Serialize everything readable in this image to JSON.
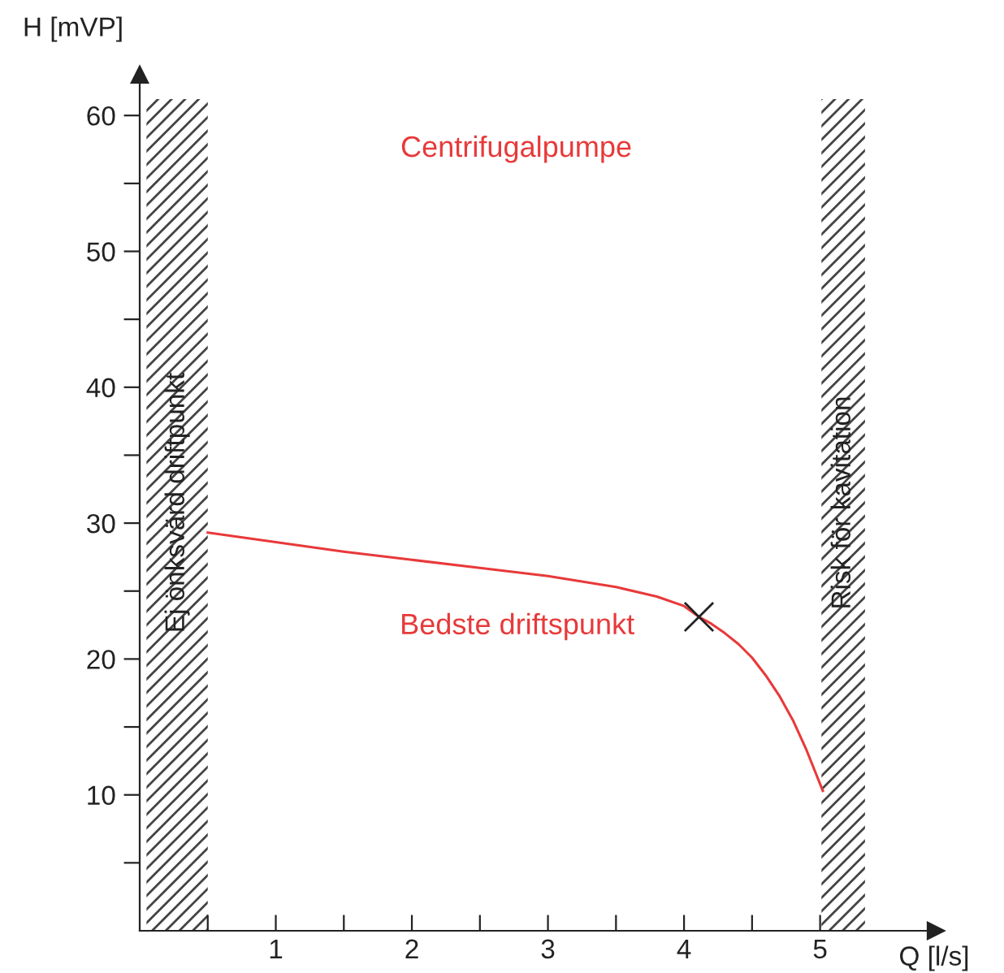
{
  "chart_data": {
    "type": "line",
    "xlabel": "Q [l/s]",
    "ylabel": "H [mVP]",
    "series": [
      {
        "color": "#e8393a",
        "x": [
          0.5,
          1.0,
          1.5,
          2.0,
          2.5,
          3.0,
          3.5,
          3.8,
          4.0,
          4.11,
          4.2,
          4.3,
          4.4,
          4.5,
          4.6,
          4.7,
          4.8,
          4.9,
          5.02
        ],
        "values": [
          29.3,
          28.6,
          27.9,
          27.3,
          26.7,
          26.1,
          25.3,
          24.6,
          23.9,
          23.1,
          22.6,
          21.9,
          21.1,
          20.1,
          18.8,
          17.3,
          15.5,
          13.3,
          10.3
        ]
      },
      {
        "type": "scatter",
        "color": "#222222",
        "marker": "cross",
        "x": [
          4.11
        ],
        "values": [
          23.1
        ]
      }
    ],
    "xlim": [
      0,
      5.85
    ],
    "ylim": [
      0,
      63
    ],
    "xticks": [
      {
        "value": 0.5,
        "label": null
      },
      1,
      {
        "value": 1.5,
        "label": null
      },
      2,
      {
        "value": 2.5,
        "label": null
      },
      3,
      {
        "value": 3.5,
        "label": null
      },
      4,
      {
        "value": 4.5,
        "label": null
      },
      5
    ],
    "yticks": [
      {
        "value": 5,
        "label": null
      },
      10,
      {
        "value": 15,
        "label": null
      },
      20,
      {
        "value": 25,
        "label": null
      },
      30,
      {
        "value": 35,
        "label": null
      },
      40,
      {
        "value": 45,
        "label": null
      },
      50,
      {
        "value": 55,
        "label": null
      },
      60
    ],
    "bands": [
      {
        "axis": "x",
        "from": 0.05,
        "to": 0.5,
        "label": "Ej önksvärd driftpunkt",
        "color": "#444444"
      },
      {
        "axis": "x",
        "from": 5.01,
        "to": 5.33,
        "label": "Risk för kavitation",
        "color": "#444444"
      }
    ],
    "annotations": [
      "Centrifugalpumpe",
      {
        "text": "Bedste driftspunkt",
        "x": 4.11,
        "y": 23.1
      }
    ],
    "grid": false
  }
}
